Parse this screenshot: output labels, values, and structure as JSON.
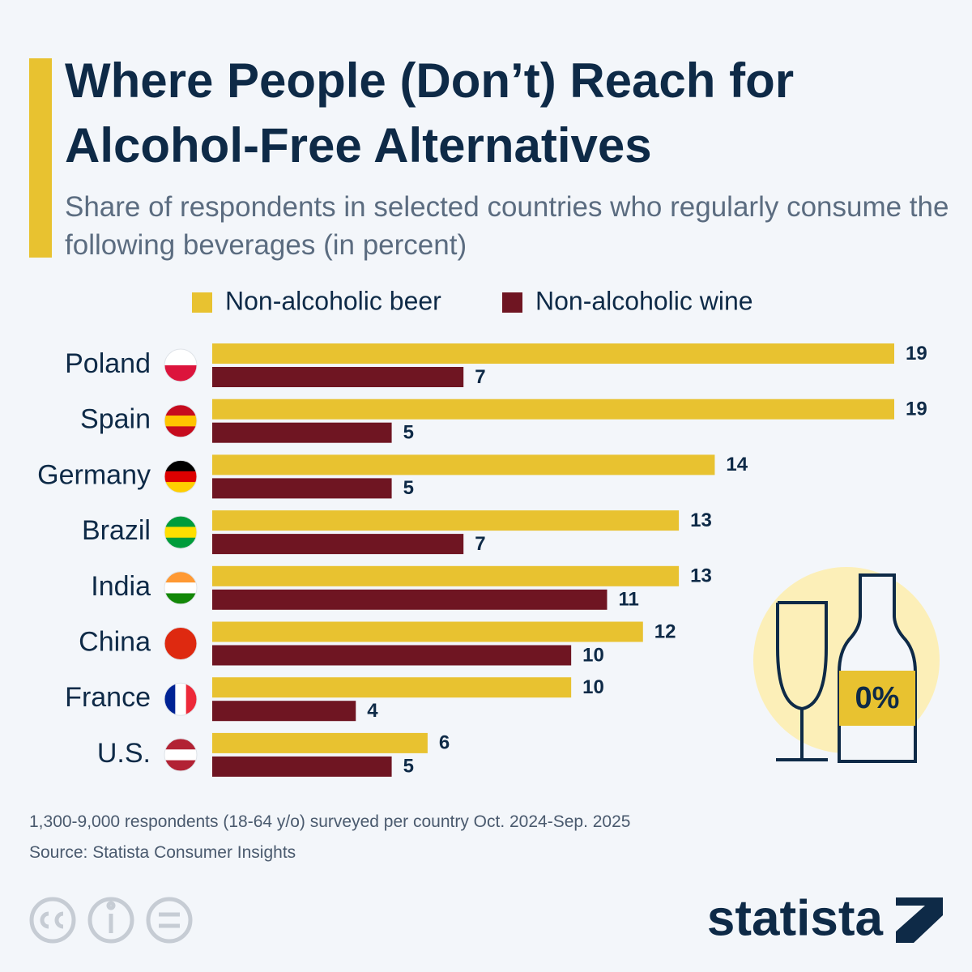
{
  "chart_data": {
    "type": "bar",
    "orientation": "horizontal",
    "title": "Where People (Don’t) Reach for Alcohol-Free Alternatives",
    "subtitle": "Share of respondents in selected countries who regularly consume the following beverages (in percent)",
    "categories": [
      "Poland",
      "Spain",
      "Germany",
      "Brazil",
      "India",
      "China",
      "France",
      "U.S."
    ],
    "series": [
      {
        "name": "Non-alcoholic beer",
        "color": "#e8c230",
        "values": [
          19,
          19,
          14,
          13,
          13,
          12,
          10,
          6
        ]
      },
      {
        "name": "Non-alcoholic wine",
        "color": "#6f1522",
        "values": [
          7,
          5,
          5,
          7,
          11,
          10,
          4,
          5
        ]
      }
    ],
    "legend": "top",
    "illustration_label": "0%",
    "note": "1,300-9,000 respondents (18-64 y/o) surveyed per country Oct. 2024-Sep. 2025",
    "source": "Source: Statista Consumer Insights",
    "brand": "statista"
  }
}
